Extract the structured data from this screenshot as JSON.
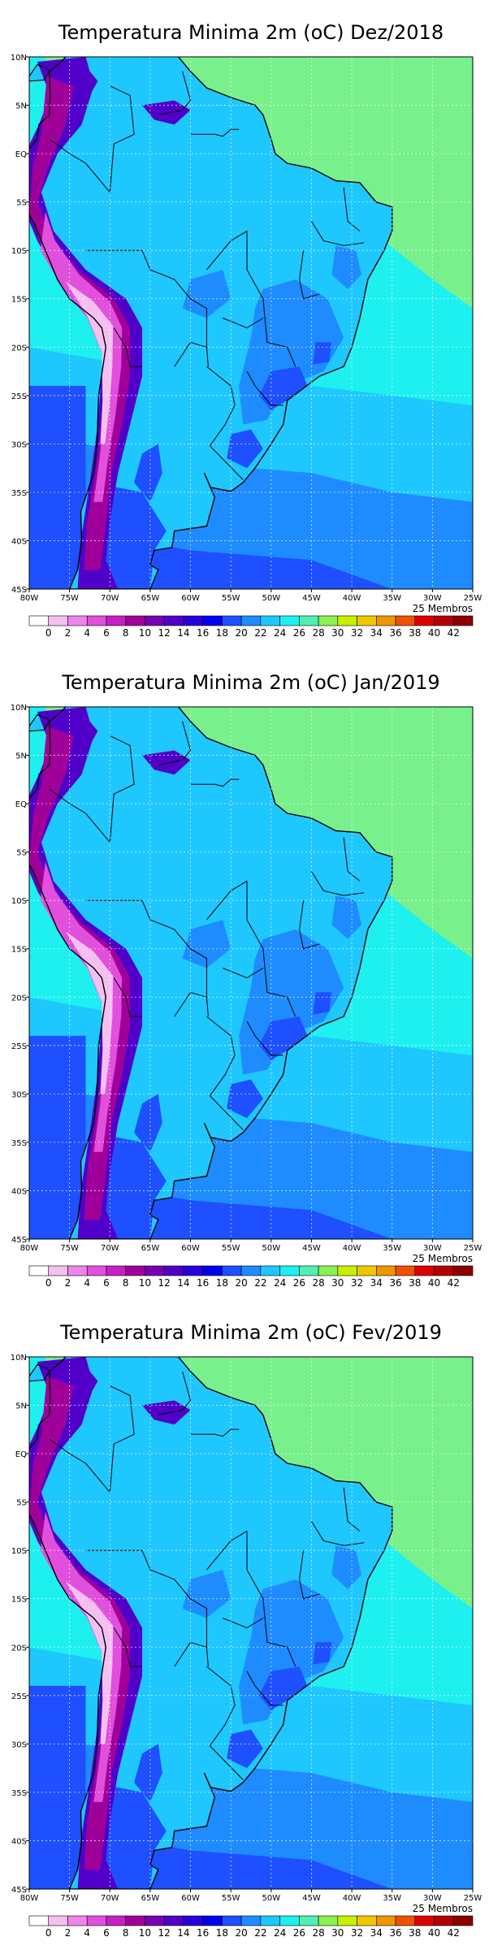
{
  "figure": {
    "lon_ticks": [
      "80W",
      "75W",
      "70W",
      "65W",
      "60W",
      "55W",
      "50W",
      "45W",
      "40W",
      "35W",
      "30W",
      "25W"
    ],
    "lat_ticks": [
      "10N",
      "5N",
      "EQ",
      "5S",
      "10S",
      "15S",
      "20S",
      "25S",
      "30S",
      "35S",
      "40S",
      "45S"
    ],
    "members_label": "25 Membros",
    "colorbar": {
      "labels": [
        "0",
        "2",
        "4",
        "6",
        "8",
        "10",
        "12",
        "14",
        "16",
        "18",
        "20",
        "22",
        "24",
        "26",
        "28",
        "30",
        "32",
        "34",
        "36",
        "38",
        "40",
        "42"
      ],
      "colors": [
        "#ffffff",
        "#f5c0f0",
        "#ee86ea",
        "#e050dc",
        "#c81ec8",
        "#a0009a",
        "#7800b4",
        "#5000c8",
        "#2800dc",
        "#0000f0",
        "#1e50ff",
        "#1e8cff",
        "#1ec8ff",
        "#1ef0f0",
        "#50f0b4",
        "#8cf050",
        "#c8f000",
        "#f0c800",
        "#f09600",
        "#f05000",
        "#dc0000",
        "#b40000",
        "#8c0000"
      ]
    },
    "layer_colors": {
      "ocean_north": "#78f08c",
      "ocean_mid": "#1ef0f0",
      "ocean_south_1": "#1ec8ff",
      "ocean_south_2": "#1e8cff",
      "ocean_south_3": "#1e50ff",
      "land": "#1ec8ff",
      "land_mid": "#1e8cff",
      "land_cool": "#1e50ff",
      "andes_1": "#5000c8",
      "andes_2": "#a0009a",
      "andes_3": "#e050dc",
      "andes_4": "#f5c0f0",
      "coast": "#000000"
    }
  },
  "panels": [
    {
      "title": "Temperatura Minima 2m (oC) Dez/2018"
    },
    {
      "title": "Temperatura Minima 2m (oC) Jan/2019"
    },
    {
      "title": "Temperatura Minima 2m (oC) Fev/2019"
    }
  ]
}
